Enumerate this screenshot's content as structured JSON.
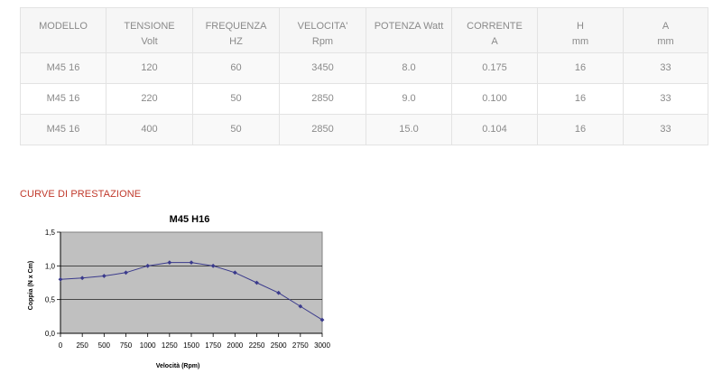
{
  "table": {
    "headers": [
      {
        "line1": "MODELLO",
        "line2": ""
      },
      {
        "line1": "TENSIONE",
        "line2": "Volt"
      },
      {
        "line1": "FREQUENZA",
        "line2": "HZ"
      },
      {
        "line1": "VELOCITA'",
        "line2": "Rpm"
      },
      {
        "line1": "POTENZA Watt",
        "line2": ""
      },
      {
        "line1": "CORRENTE",
        "line2": "A"
      },
      {
        "line1": "H",
        "line2": "mm"
      },
      {
        "line1": "A",
        "line2": "mm"
      }
    ],
    "rows": [
      [
        "M45 16",
        "120",
        "60",
        "3450",
        "8.0",
        "0.175",
        "16",
        "33"
      ],
      [
        "M45 16",
        "220",
        "50",
        "2850",
        "9.0",
        "0.100",
        "16",
        "33"
      ],
      [
        "M45 16",
        "400",
        "50",
        "2850",
        "15.0",
        "0.104",
        "16",
        "33"
      ]
    ]
  },
  "section_title": "CURVE DI PRESTAZIONE",
  "chart_data": {
    "type": "line",
    "title": "M45 H16",
    "xlabel": "Velocità (Rpm)",
    "ylabel": "Coppia (N x Cm)",
    "xlim": [
      0,
      3000
    ],
    "ylim": [
      0,
      1.5
    ],
    "x_ticks": [
      "0",
      "250",
      "500",
      "750",
      "1000",
      "1250",
      "1500",
      "1750",
      "2000",
      "2250",
      "2500",
      "2750",
      "3000"
    ],
    "y_ticks": [
      "0,0",
      "0,5",
      "1,0",
      "1,5"
    ],
    "grid": "horizontal",
    "plot_background": "#c0c0c0",
    "series": [
      {
        "color": "#3a3a8c",
        "x": [
          0,
          250,
          500,
          750,
          1000,
          1250,
          1500,
          1750,
          2000,
          2250,
          2500,
          2750,
          3000
        ],
        "y": [
          0.8,
          0.82,
          0.85,
          0.9,
          1.0,
          1.05,
          1.05,
          1.0,
          0.9,
          0.75,
          0.6,
          0.4,
          0.2
        ]
      }
    ]
  }
}
